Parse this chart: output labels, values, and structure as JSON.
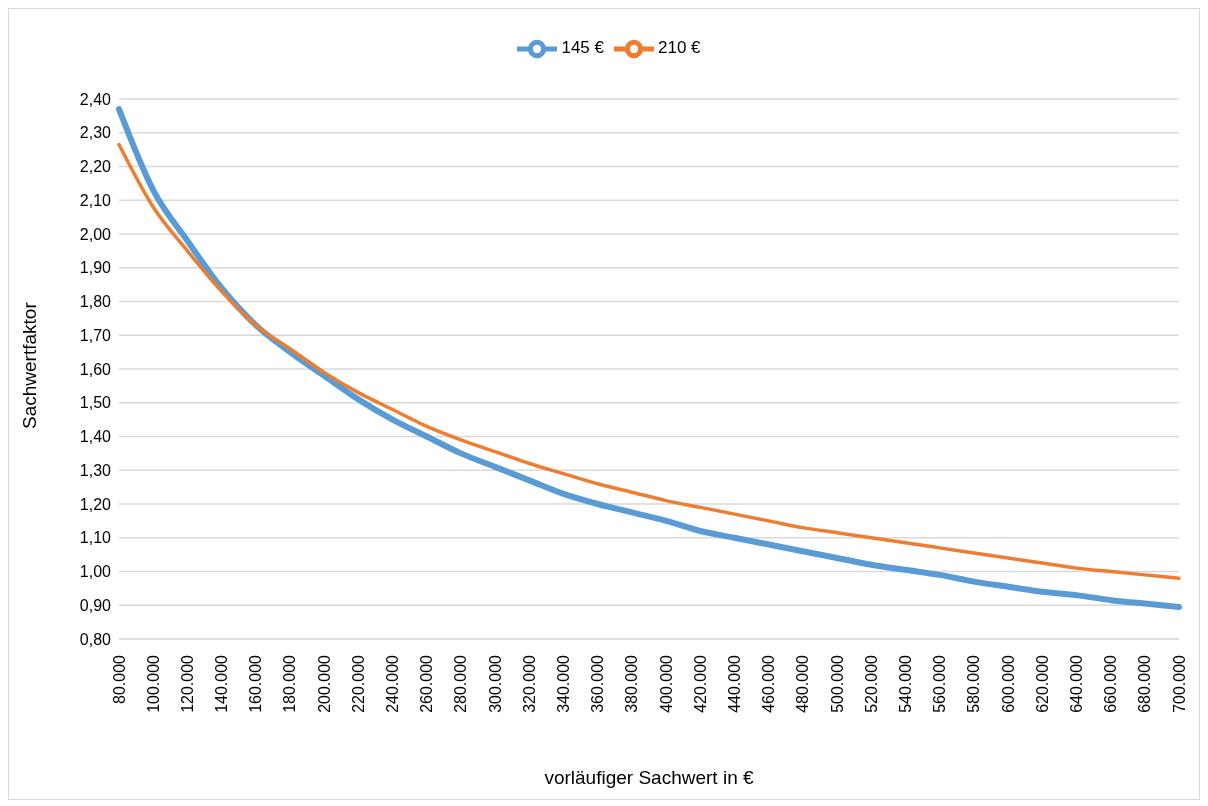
{
  "chart_data": {
    "type": "line",
    "xlabel": "vorläufiger Sachwert in €",
    "ylabel": "Sachwertfaktor",
    "categories": [
      "80.000",
      "100.000",
      "120.000",
      "140.000",
      "160.000",
      "180.000",
      "200.000",
      "220.000",
      "240.000",
      "260.000",
      "280.000",
      "300.000",
      "320.000",
      "340.000",
      "360.000",
      "380.000",
      "400.000",
      "420.000",
      "440.000",
      "460.000",
      "480.000",
      "500.000",
      "520.000",
      "540.000",
      "560.000",
      "580.000",
      "600.000",
      "620.000",
      "640.000",
      "660.000",
      "680.000",
      "700.000"
    ],
    "series": [
      {
        "name": "145 €",
        "color": "#5b9bd5",
        "values": [
          2.37,
          2.13,
          1.98,
          1.84,
          1.73,
          1.65,
          1.58,
          1.51,
          1.45,
          1.4,
          1.35,
          1.31,
          1.27,
          1.23,
          1.2,
          1.175,
          1.15,
          1.12,
          1.1,
          1.08,
          1.06,
          1.04,
          1.02,
          1.005,
          0.99,
          0.97,
          0.955,
          0.94,
          0.93,
          0.915,
          0.905,
          0.895
        ]
      },
      {
        "name": "210 €",
        "color": "#ed7d31",
        "values": [
          2.265,
          2.08,
          1.95,
          1.83,
          1.73,
          1.66,
          1.59,
          1.53,
          1.48,
          1.43,
          1.39,
          1.355,
          1.32,
          1.29,
          1.26,
          1.235,
          1.21,
          1.19,
          1.17,
          1.15,
          1.13,
          1.115,
          1.1,
          1.085,
          1.07,
          1.055,
          1.04,
          1.025,
          1.01,
          1.0,
          0.99,
          0.98
        ]
      }
    ],
    "ylim": [
      0.8,
      2.4
    ],
    "yticks": [
      {
        "value": 0.8,
        "label": "0,80"
      },
      {
        "value": 0.9,
        "label": "0,90"
      },
      {
        "value": 1.0,
        "label": "1,00"
      },
      {
        "value": 1.1,
        "label": "1,10"
      },
      {
        "value": 1.2,
        "label": "1,20"
      },
      {
        "value": 1.3,
        "label": "1,30"
      },
      {
        "value": 1.4,
        "label": "1,40"
      },
      {
        "value": 1.5,
        "label": "1,50"
      },
      {
        "value": 1.6,
        "label": "1,60"
      },
      {
        "value": 1.7,
        "label": "1,70"
      },
      {
        "value": 1.8,
        "label": "1,80"
      },
      {
        "value": 1.9,
        "label": "1,90"
      },
      {
        "value": 2.0,
        "label": "2,00"
      },
      {
        "value": 2.1,
        "label": "2,10"
      },
      {
        "value": 2.2,
        "label": "2,20"
      },
      {
        "value": 2.3,
        "label": "2,30"
      },
      {
        "value": 2.4,
        "label": "2,40"
      }
    ],
    "grid": "y",
    "legend": "top",
    "line_style": "solid"
  }
}
